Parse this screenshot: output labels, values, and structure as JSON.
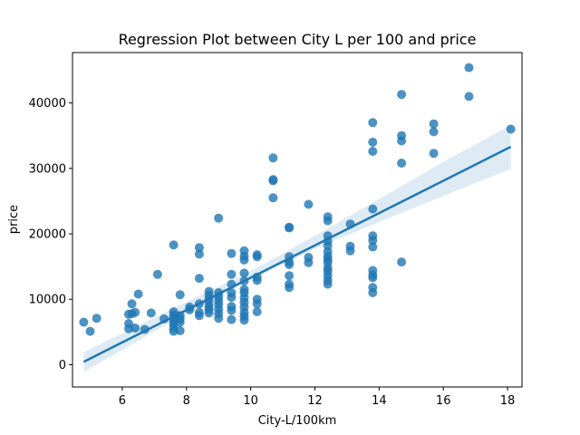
{
  "chart_data": {
    "type": "scatter",
    "title": "Regression Plot between City L per 100 and price",
    "xlabel": "City-L/100km",
    "ylabel": "price",
    "xlim": [
      4.45,
      18.45
    ],
    "ylim": [
      -3400,
      47700
    ],
    "xticks": [
      6,
      8,
      10,
      12,
      14,
      16,
      18
    ],
    "yticks": [
      0,
      10000,
      20000,
      30000,
      40000
    ],
    "grid": false,
    "colors": {
      "points": "#1f77b4",
      "line": "#1f77b4",
      "band": "#1f77b4"
    },
    "regression": {
      "x": [
        4.8,
        18.1
      ],
      "y": [
        450,
        33300
      ],
      "ci": [
        {
          "x": 4.8,
          "lower": -1100,
          "upper": 1900
        },
        {
          "x": 8.0,
          "lower": 7900,
          "upper": 9600
        },
        {
          "x": 10.0,
          "lower": 13000,
          "upper": 14300
        },
        {
          "x": 12.0,
          "lower": 17700,
          "upper": 19700
        },
        {
          "x": 14.0,
          "lower": 21800,
          "upper": 25300
        },
        {
          "x": 16.0,
          "lower": 25800,
          "upper": 31000
        },
        {
          "x": 18.1,
          "lower": 29900,
          "upper": 36600
        }
      ]
    },
    "points": [
      [
        4.8,
        6500
      ],
      [
        5.0,
        5100
      ],
      [
        5.2,
        7100
      ],
      [
        6.2,
        7700
      ],
      [
        6.2,
        6300
      ],
      [
        6.2,
        5500
      ],
      [
        6.3,
        7800
      ],
      [
        6.3,
        9300
      ],
      [
        6.4,
        8000
      ],
      [
        6.4,
        5600
      ],
      [
        6.5,
        10800
      ],
      [
        6.7,
        5400
      ],
      [
        6.9,
        7900
      ],
      [
        7.1,
        13800
      ],
      [
        7.3,
        7000
      ],
      [
        7.6,
        18300
      ],
      [
        7.6,
        8100
      ],
      [
        7.6,
        7600
      ],
      [
        7.6,
        7200
      ],
      [
        7.6,
        6700
      ],
      [
        7.6,
        6200
      ],
      [
        7.6,
        5600
      ],
      [
        7.6,
        5100
      ],
      [
        7.8,
        10700
      ],
      [
        7.8,
        7500
      ],
      [
        7.8,
        7000
      ],
      [
        7.8,
        6500
      ],
      [
        7.8,
        5200
      ],
      [
        8.1,
        8400
      ],
      [
        8.1,
        8800
      ],
      [
        8.4,
        17900
      ],
      [
        8.4,
        16900
      ],
      [
        8.4,
        13200
      ],
      [
        8.4,
        9300
      ],
      [
        8.4,
        8000
      ],
      [
        8.4,
        7500
      ],
      [
        8.7,
        11200
      ],
      [
        8.7,
        10600
      ],
      [
        8.7,
        10000
      ],
      [
        8.7,
        9400
      ],
      [
        8.7,
        8800
      ],
      [
        8.7,
        8400
      ],
      [
        8.7,
        7900
      ],
      [
        9.0,
        22400
      ],
      [
        9.0,
        11000
      ],
      [
        9.0,
        10400
      ],
      [
        9.0,
        9800
      ],
      [
        9.0,
        9200
      ],
      [
        9.0,
        8500
      ],
      [
        9.0,
        7800
      ],
      [
        9.0,
        7100
      ],
      [
        9.4,
        17000
      ],
      [
        9.4,
        13800
      ],
      [
        9.4,
        12300
      ],
      [
        9.4,
        11000
      ],
      [
        9.4,
        10300
      ],
      [
        9.4,
        8900
      ],
      [
        9.4,
        8300
      ],
      [
        9.4,
        6900
      ],
      [
        9.8,
        17400
      ],
      [
        9.8,
        16600
      ],
      [
        9.8,
        16000
      ],
      [
        9.8,
        14000
      ],
      [
        9.8,
        12800
      ],
      [
        9.8,
        11500
      ],
      [
        9.8,
        11000
      ],
      [
        9.8,
        10200
      ],
      [
        9.8,
        9500
      ],
      [
        9.8,
        8800
      ],
      [
        9.8,
        8000
      ],
      [
        9.8,
        7400
      ],
      [
        9.8,
        6800
      ],
      [
        10.2,
        16800
      ],
      [
        10.2,
        16500
      ],
      [
        10.2,
        13400
      ],
      [
        10.2,
        12900
      ],
      [
        10.2,
        10000
      ],
      [
        10.2,
        9300
      ],
      [
        10.2,
        8100
      ],
      [
        10.7,
        31600
      ],
      [
        10.7,
        28300
      ],
      [
        10.7,
        28100
      ],
      [
        10.7,
        25500
      ],
      [
        11.2,
        21000
      ],
      [
        11.2,
        20900
      ],
      [
        11.2,
        16500
      ],
      [
        11.2,
        15700
      ],
      [
        11.2,
        15300
      ],
      [
        11.2,
        13600
      ],
      [
        11.2,
        12300
      ],
      [
        11.2,
        11800
      ],
      [
        11.8,
        24500
      ],
      [
        11.8,
        16400
      ],
      [
        11.8,
        15600
      ],
      [
        12.4,
        22600
      ],
      [
        12.4,
        22000
      ],
      [
        12.4,
        19700
      ],
      [
        12.4,
        18900
      ],
      [
        12.4,
        18200
      ],
      [
        12.4,
        17300
      ],
      [
        12.4,
        16600
      ],
      [
        12.4,
        16100
      ],
      [
        12.4,
        15600
      ],
      [
        12.4,
        14800
      ],
      [
        12.4,
        14300
      ],
      [
        12.4,
        13600
      ],
      [
        12.4,
        12900
      ],
      [
        12.4,
        12300
      ],
      [
        13.1,
        21500
      ],
      [
        13.1,
        18100
      ],
      [
        13.1,
        17400
      ],
      [
        13.8,
        37000
      ],
      [
        13.8,
        34000
      ],
      [
        13.8,
        32600
      ],
      [
        13.8,
        23800
      ],
      [
        13.8,
        19700
      ],
      [
        13.8,
        19000
      ],
      [
        13.8,
        18000
      ],
      [
        13.8,
        14400
      ],
      [
        13.8,
        13700
      ],
      [
        13.8,
        13300
      ],
      [
        13.8,
        11800
      ],
      [
        13.8,
        11000
      ],
      [
        14.7,
        41300
      ],
      [
        14.7,
        35000
      ],
      [
        14.7,
        34200
      ],
      [
        14.7,
        30800
      ],
      [
        14.7,
        15700
      ],
      [
        15.7,
        36800
      ],
      [
        15.7,
        35600
      ],
      [
        15.7,
        32300
      ],
      [
        16.8,
        45400
      ],
      [
        16.8,
        41000
      ],
      [
        18.1,
        36000
      ]
    ]
  }
}
